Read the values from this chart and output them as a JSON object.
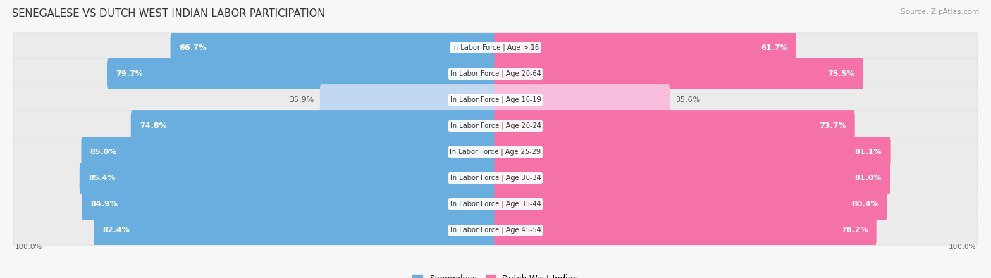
{
  "title": "SENEGALESE VS DUTCH WEST INDIAN LABOR PARTICIPATION",
  "source": "Source: ZipAtlas.com",
  "categories": [
    "In Labor Force | Age > 16",
    "In Labor Force | Age 20-64",
    "In Labor Force | Age 16-19",
    "In Labor Force | Age 20-24",
    "In Labor Force | Age 25-29",
    "In Labor Force | Age 30-34",
    "In Labor Force | Age 35-44",
    "In Labor Force | Age 45-54"
  ],
  "senegalese": [
    66.7,
    79.7,
    35.9,
    74.8,
    85.0,
    85.4,
    84.9,
    82.4
  ],
  "dutch_west_indian": [
    61.7,
    75.5,
    35.6,
    73.7,
    81.1,
    81.0,
    80.4,
    78.2
  ],
  "blue_color": "#6AAEE0",
  "pink_color": "#F472A8",
  "blue_light": "#C2D8F0",
  "pink_light": "#F9BEDD",
  "row_bg": "#EBEBEB",
  "background": "#F7F7F7",
  "label_fontsize": 8,
  "title_fontsize": 10.5,
  "source_fontsize": 7.5,
  "legend_fontsize": 8.5,
  "cat_fontsize": 7.0
}
